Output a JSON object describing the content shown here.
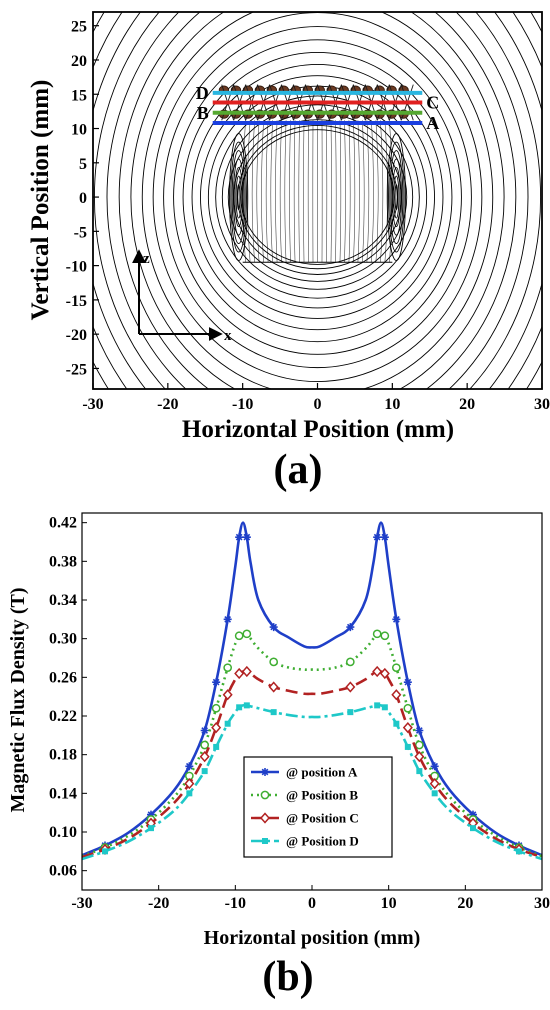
{
  "figure_a": {
    "panel_label": "(a)",
    "xlabel": "Horizontal Position (mm)",
    "ylabel": "Vertical Position (mm)",
    "xticks": [
      -30,
      -20,
      -10,
      0,
      10,
      20,
      30
    ],
    "yticks": [
      -25,
      -20,
      -15,
      -10,
      -5,
      0,
      5,
      10,
      15,
      20,
      25
    ],
    "xlim": [
      -30,
      30
    ],
    "ylim": [
      -28,
      27
    ],
    "axis_arrows": {
      "z": "z",
      "x": "x"
    },
    "positions": [
      {
        "name": "D",
        "y": 15.2,
        "color": "#29b6e0",
        "label_side": "left"
      },
      {
        "name": "C",
        "y": 13.8,
        "color": "#e02020",
        "label_side": "right"
      },
      {
        "name": "B",
        "y": 12.3,
        "color": "#55a830",
        "label_side": "left"
      },
      {
        "name": "A",
        "y": 10.8,
        "color": "#1a3fe0",
        "label_side": "right"
      }
    ]
  },
  "figure_b": {
    "panel_label": "(b)",
    "xlabel": "Horizontal position (mm)",
    "ylabel": "Magnetic Flux Density (T)",
    "xticks": [
      -30,
      -20,
      -10,
      0,
      10,
      20,
      30
    ],
    "yticks": [
      "0.06",
      "0.10",
      "0.14",
      "0.18",
      "0.22",
      "0.26",
      "0.30",
      "0.34",
      "0.38",
      "0.42"
    ],
    "legend": [
      "@ position A",
      "@ Position B",
      "@ Position C",
      "@ Position D"
    ]
  },
  "chart_data": [
    {
      "type": "line",
      "title": "",
      "xlabel": "Horizontal Position (mm)",
      "ylabel": "Vertical Position (mm)",
      "xlim": [
        -30,
        30
      ],
      "ylim": [
        -28,
        27
      ],
      "series": [
        {
          "name": "D",
          "color": "#29b6e0",
          "x": [
            -14,
            14
          ],
          "y": [
            15.2,
            15.2
          ]
        },
        {
          "name": "C",
          "color": "#e02020",
          "x": [
            -14,
            14
          ],
          "y": [
            13.8,
            13.8
          ]
        },
        {
          "name": "B",
          "color": "#55a830",
          "x": [
            -14,
            14
          ],
          "y": [
            12.3,
            12.3
          ]
        },
        {
          "name": "A",
          "color": "#1a3fe0",
          "x": [
            -14,
            14
          ],
          "y": [
            10.8,
            10.8
          ]
        }
      ]
    },
    {
      "type": "line",
      "title": "",
      "xlabel": "Horizontal position (mm)",
      "ylabel": "Magnetic Flux Density (T)",
      "xlim": [
        -30,
        30
      ],
      "ylim": [
        0.04,
        0.43
      ],
      "legend_position": "center-bottom",
      "x": [
        -30,
        -27,
        -24,
        -21,
        -18,
        -16,
        -14,
        -12.5,
        -11,
        -10,
        -9.5,
        -9,
        -8.5,
        -8,
        -7,
        -5,
        -3,
        -1,
        0,
        1,
        3,
        5,
        7,
        8,
        8.5,
        9,
        9.5,
        10,
        11,
        12.5,
        14,
        16,
        18,
        21,
        24,
        27,
        30
      ],
      "series": [
        {
          "name": "@ position A",
          "color": "#1f3fc8",
          "dash": "solid",
          "marker": "star",
          "values": [
            0.076,
            0.086,
            0.099,
            0.118,
            0.143,
            0.168,
            0.205,
            0.255,
            0.32,
            0.375,
            0.405,
            0.42,
            0.405,
            0.378,
            0.34,
            0.312,
            0.301,
            0.292,
            0.291,
            0.292,
            0.301,
            0.312,
            0.34,
            0.378,
            0.405,
            0.42,
            0.405,
            0.375,
            0.32,
            0.255,
            0.205,
            0.168,
            0.143,
            0.118,
            0.099,
            0.086,
            0.076
          ]
        },
        {
          "name": "@ Position B",
          "color": "#3fae32",
          "dash": "dotted",
          "marker": "circle",
          "values": [
            0.075,
            0.084,
            0.096,
            0.113,
            0.136,
            0.158,
            0.19,
            0.228,
            0.27,
            0.295,
            0.303,
            0.305,
            0.305,
            0.3,
            0.29,
            0.276,
            0.27,
            0.268,
            0.268,
            0.268,
            0.27,
            0.276,
            0.29,
            0.3,
            0.305,
            0.305,
            0.303,
            0.295,
            0.27,
            0.228,
            0.19,
            0.158,
            0.136,
            0.113,
            0.096,
            0.084,
            0.075
          ]
        },
        {
          "name": "@ Position C",
          "color": "#b22222",
          "dash": "dashed",
          "marker": "diamond",
          "values": [
            0.074,
            0.082,
            0.093,
            0.109,
            0.13,
            0.15,
            0.178,
            0.208,
            0.242,
            0.258,
            0.264,
            0.266,
            0.266,
            0.264,
            0.258,
            0.25,
            0.246,
            0.243,
            0.243,
            0.243,
            0.246,
            0.25,
            0.258,
            0.264,
            0.266,
            0.266,
            0.264,
            0.258,
            0.242,
            0.208,
            0.178,
            0.15,
            0.13,
            0.109,
            0.093,
            0.082,
            0.074
          ]
        },
        {
          "name": "@ Position D",
          "color": "#1ec8c8",
          "dash": "dashdot",
          "marker": "square",
          "values": [
            0.072,
            0.08,
            0.09,
            0.104,
            0.122,
            0.14,
            0.163,
            0.188,
            0.212,
            0.224,
            0.229,
            0.231,
            0.231,
            0.23,
            0.228,
            0.224,
            0.221,
            0.219,
            0.219,
            0.219,
            0.221,
            0.224,
            0.228,
            0.23,
            0.231,
            0.231,
            0.229,
            0.224,
            0.212,
            0.188,
            0.163,
            0.14,
            0.122,
            0.104,
            0.09,
            0.08,
            0.072
          ]
        }
      ]
    }
  ]
}
